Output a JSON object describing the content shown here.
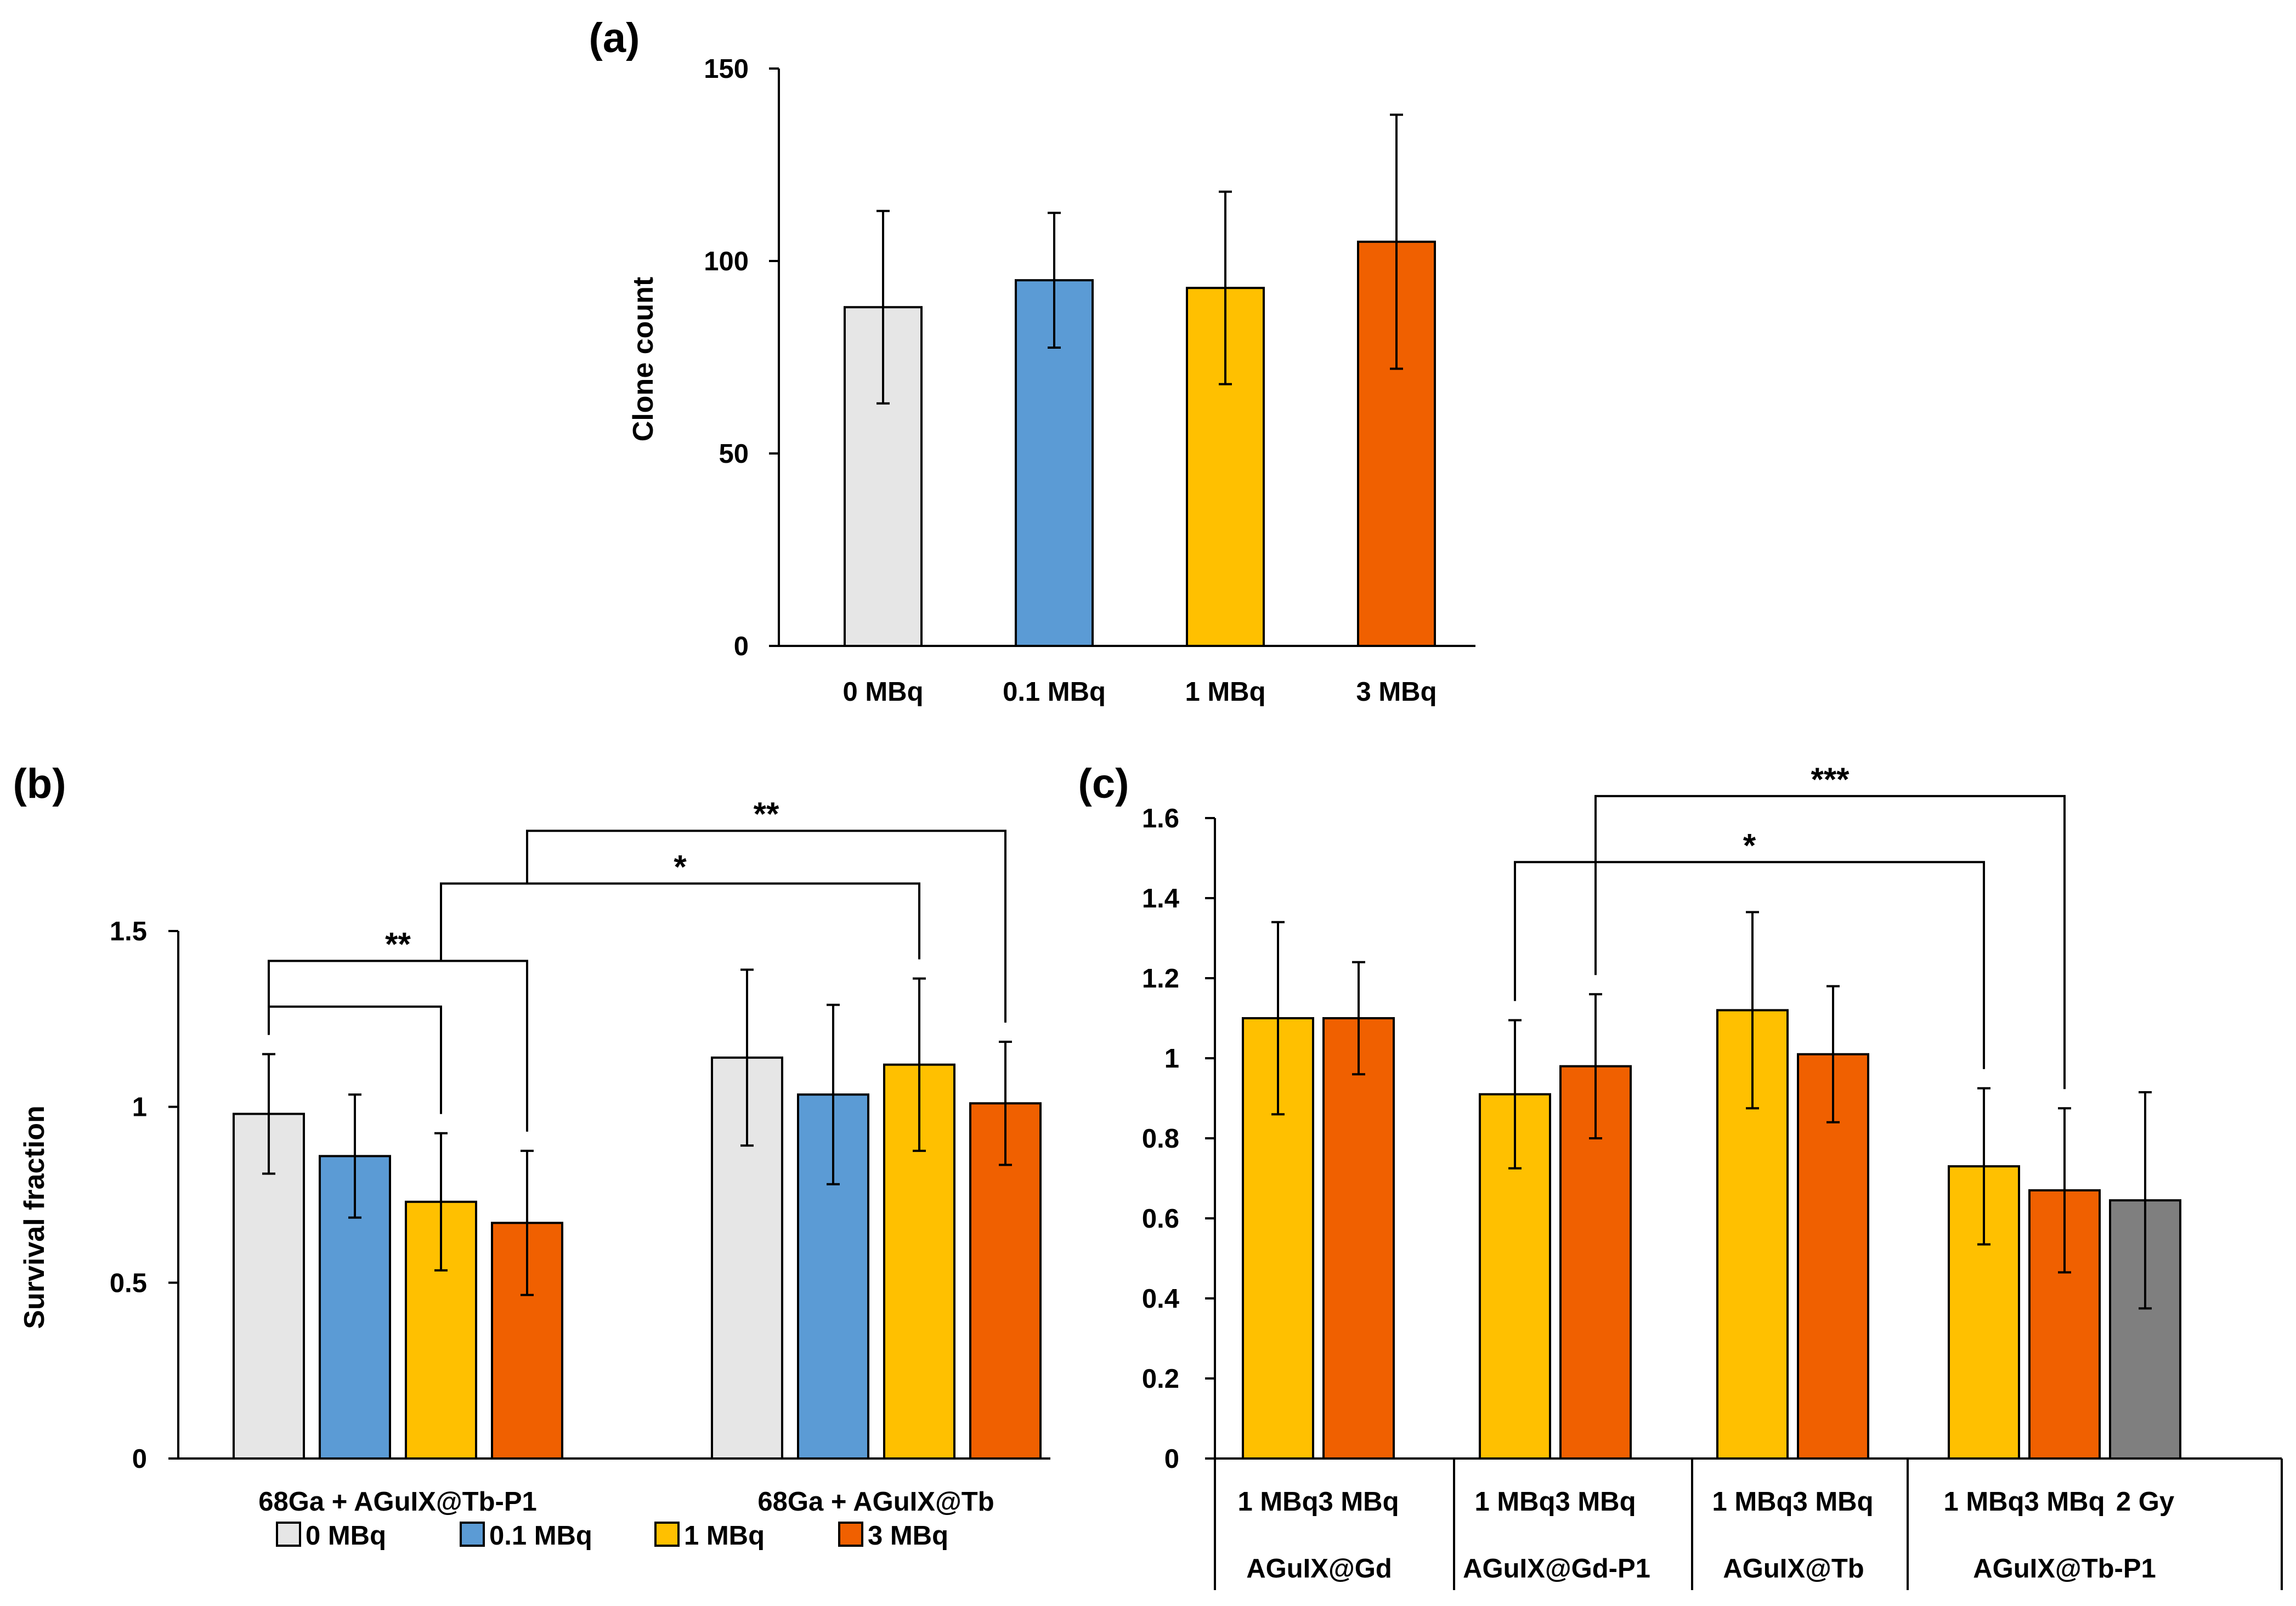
{
  "colors": {
    "0 MBq": "#e6e6e6",
    "0.1 MBq": "#5b9bd5",
    "1 MBq": "#ffc000",
    "3 MBq": "#f06000",
    "2 Gy": "#7f7f7f",
    "stroke": "#000000"
  },
  "chart_data": [
    {
      "id": "a",
      "panel_label": "(a)",
      "type": "bar",
      "ylabel": "Clone count",
      "xlabel": "",
      "ylim": [
        0,
        150
      ],
      "yticks": [
        "0",
        "50",
        "100",
        "150"
      ],
      "categories": [
        "0 MBq",
        "0.1 MBq",
        "1 MBq",
        "3 MBq"
      ],
      "values": [
        88,
        95,
        93,
        105
      ],
      "errors": [
        25,
        17.5,
        25,
        33
      ],
      "color_keys": [
        "0 MBq",
        "0.1 MBq",
        "1 MBq",
        "3 MBq"
      ],
      "grid": false
    },
    {
      "id": "b",
      "panel_label": "(b)",
      "type": "bar",
      "ylabel": "Survival fraction",
      "xlabel": "",
      "ylim": [
        0,
        1.5
      ],
      "yticks": [
        "0",
        "0.5",
        "1",
        "1.5"
      ],
      "categories": [
        "68Ga + AGuIX@Tb-P1",
        "68Ga + AGuIX@Tb"
      ],
      "series": [
        {
          "name": "0 MBq",
          "values": [
            0.98,
            1.14
          ],
          "errors": [
            0.17,
            0.25
          ]
        },
        {
          "name": "0.1 MBq",
          "values": [
            0.86,
            1.035
          ],
          "errors": [
            0.175,
            0.255
          ]
        },
        {
          "name": "1 MBq",
          "values": [
            0.73,
            1.12
          ],
          "errors": [
            0.195,
            0.245
          ]
        },
        {
          "name": "3 MBq",
          "values": [
            0.67,
            1.01
          ],
          "errors": [
            0.205,
            0.175
          ]
        }
      ],
      "legend": {
        "position": "bottom",
        "entries": [
          "0 MBq",
          "0.1 MBq",
          "1 MBq",
          "3 MBq"
        ]
      },
      "significance": [
        {
          "from": [
            0,
            "0 MBq"
          ],
          "to": [
            0,
            "1 MBq"
          ],
          "label": ""
        },
        {
          "from": [
            0,
            "0 MBq"
          ],
          "to": [
            0,
            "3 MBq"
          ],
          "label": "**"
        },
        {
          "from": [
            0,
            "1 MBq"
          ],
          "to": [
            1,
            "1 MBq"
          ],
          "label": "*"
        },
        {
          "from": [
            0,
            "3 MBq"
          ],
          "to": [
            1,
            "3 MBq"
          ],
          "label": "**"
        }
      ],
      "grid": false
    },
    {
      "id": "c",
      "panel_label": "(c)",
      "type": "bar",
      "ylabel": "",
      "xlabel": "",
      "ylim": [
        0,
        1.6
      ],
      "yticks": [
        "0",
        "0.2",
        "0.4",
        "0.6",
        "0.8",
        "1",
        "1.2",
        "1.4",
        "1.6"
      ],
      "groups": [
        {
          "name": "AGuIX@Gd",
          "bars": [
            {
              "label": "1 MBq",
              "value": 1.1,
              "error": 0.24,
              "color_key": "1 MBq"
            },
            {
              "label": "3 MBq",
              "value": 1.1,
              "error": 0.14,
              "color_key": "3 MBq"
            }
          ]
        },
        {
          "name": "AGuIX@Gd-P1",
          "bars": [
            {
              "label": "1 MBq",
              "value": 0.91,
              "error": 0.185,
              "color_key": "1 MBq"
            },
            {
              "label": "3 MBq",
              "value": 0.98,
              "error": 0.18,
              "color_key": "3 MBq"
            }
          ]
        },
        {
          "name": "AGuIX@Tb",
          "bars": [
            {
              "label": "1 MBq",
              "value": 1.12,
              "error": 0.245,
              "color_key": "1 MBq"
            },
            {
              "label": "3 MBq",
              "value": 1.01,
              "error": 0.17,
              "color_key": "3 MBq"
            }
          ]
        },
        {
          "name": "AGuIX@Tb-P1",
          "bars": [
            {
              "label": "1 MBq",
              "value": 0.73,
              "error": 0.195,
              "color_key": "1 MBq"
            },
            {
              "label": "3 MBq",
              "value": 0.67,
              "error": 0.205,
              "color_key": "3 MBq"
            },
            {
              "label": "2 Gy",
              "value": 0.645,
              "error": 0.27,
              "color_key": "2 Gy"
            }
          ]
        }
      ],
      "significance": [
        {
          "from": [
            1,
            0
          ],
          "to": [
            3,
            0
          ],
          "label": "*"
        },
        {
          "from": [
            1,
            1
          ],
          "to": [
            3,
            1
          ],
          "label": "***"
        }
      ],
      "grid": false
    }
  ]
}
